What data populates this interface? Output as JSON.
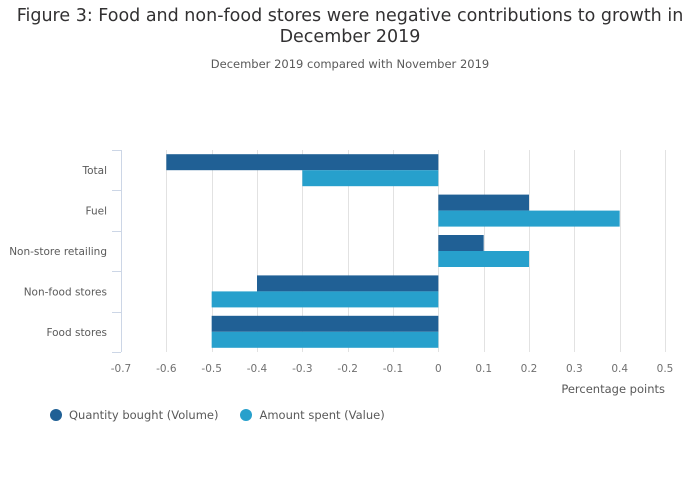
{
  "chart_data": {
    "type": "bar",
    "orientation": "horizontal",
    "title": "Figure 3: Food and non-food stores were negative contributions to growth in December 2019",
    "subtitle": "December 2019 compared with November 2019",
    "xlabel": "Percentage points",
    "ylabel": "",
    "xlim": [
      -0.7,
      0.5
    ],
    "xticks": [
      -0.7,
      -0.6,
      -0.5,
      -0.4,
      -0.3,
      -0.2,
      -0.1,
      0,
      0.1,
      0.2,
      0.3,
      0.4,
      0.5
    ],
    "xtick_labels": [
      "-0.7",
      "-0.6",
      "-0.5",
      "-0.4",
      "-0.3",
      "-0.2",
      "-0.1",
      "0",
      "0.1",
      "0.2",
      "0.3",
      "0.4",
      "0.5"
    ],
    "grid": true,
    "legend_position": "bottom-left",
    "categories": [
      "Total",
      "Fuel",
      "Non-store retailing",
      "Non-food stores",
      "Food stores"
    ],
    "series": [
      {
        "name": "Quantity bought (Volume)",
        "color": "#206095",
        "values": [
          -0.6,
          0.2,
          0.1,
          -0.4,
          -0.5
        ]
      },
      {
        "name": "Amount spent (Value)",
        "color": "#27a0cc",
        "values": [
          -0.3,
          0.4,
          0.2,
          -0.5,
          -0.5
        ]
      }
    ]
  }
}
